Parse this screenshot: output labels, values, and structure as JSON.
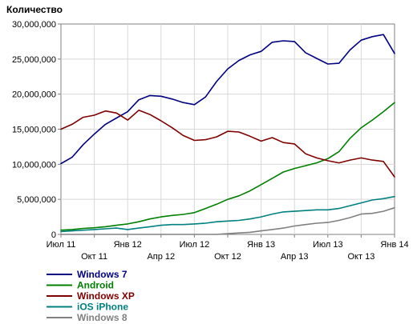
{
  "chart_data": {
    "type": "line",
    "ylabel": "Количество",
    "xlabel": "",
    "ylim": [
      0,
      30000000
    ],
    "y_ticks": [
      "0",
      "5,000,000",
      "10,000,000",
      "15,000,000",
      "20,000,000",
      "25,000,000",
      "30,000,000"
    ],
    "x_ticks_row1": [
      "Июл 11",
      "Янв 12",
      "Июл 12",
      "Янв 13",
      "Июл 13",
      "Янв 14"
    ],
    "x_ticks_row2": [
      "Окт 11",
      "Апр 12",
      "Окт 12",
      "Апр 13",
      "Окт 13"
    ],
    "x": [
      "2011-07",
      "2011-08",
      "2011-09",
      "2011-10",
      "2011-11",
      "2011-12",
      "2012-01",
      "2012-02",
      "2012-03",
      "2012-04",
      "2012-05",
      "2012-06",
      "2012-07",
      "2012-08",
      "2012-09",
      "2012-10",
      "2012-11",
      "2012-12",
      "2013-01",
      "2013-02",
      "2013-03",
      "2013-04",
      "2013-05",
      "2013-06",
      "2013-07",
      "2013-08",
      "2013-09",
      "2013-10",
      "2013-11",
      "2013-12",
      "2014-01"
    ],
    "grid": true,
    "legend_position": "bottom-left",
    "series": [
      {
        "name": "Windows 7",
        "color": "#000080",
        "values": [
          10100000,
          11000000,
          12800000,
          14300000,
          15700000,
          16600000,
          17500000,
          19200000,
          19800000,
          19700000,
          19300000,
          18800000,
          18500000,
          19600000,
          21800000,
          23600000,
          24800000,
          25600000,
          26100000,
          27400000,
          27600000,
          27500000,
          25900000,
          25100000,
          24300000,
          24400000,
          26300000,
          27700000,
          28200000,
          28500000,
          25800000
        ]
      },
      {
        "name": "Android",
        "color": "#008000",
        "values": [
          600000,
          700000,
          850000,
          950000,
          1100000,
          1300000,
          1500000,
          1800000,
          2200000,
          2500000,
          2700000,
          2850000,
          3100000,
          3700000,
          4300000,
          5000000,
          5500000,
          6200000,
          7100000,
          8000000,
          8900000,
          9400000,
          9800000,
          10200000,
          10800000,
          11800000,
          13700000,
          15200000,
          16300000,
          17500000,
          18800000
        ]
      },
      {
        "name": "Windows XP",
        "color": "#800000",
        "values": [
          15000000,
          15700000,
          16700000,
          17000000,
          17600000,
          17300000,
          16300000,
          17700000,
          17100000,
          16200000,
          15200000,
          14100000,
          13400000,
          13500000,
          13900000,
          14700000,
          14600000,
          14000000,
          13300000,
          13800000,
          13100000,
          12900000,
          11500000,
          10900000,
          10500000,
          10200000,
          10600000,
          10900000,
          10600000,
          10400000,
          8200000
        ]
      },
      {
        "name": "iOS iPhone",
        "color": "#008080",
        "values": [
          400000,
          500000,
          600000,
          700000,
          800000,
          900000,
          700000,
          900000,
          1100000,
          1300000,
          1400000,
          1400000,
          1500000,
          1600000,
          1800000,
          1900000,
          2000000,
          2200000,
          2500000,
          2900000,
          3200000,
          3300000,
          3400000,
          3500000,
          3500000,
          3700000,
          4100000,
          4500000,
          4900000,
          5100000,
          5400000
        ]
      },
      {
        "name": "Windows 8",
        "color": "#808080",
        "values": [
          0,
          0,
          0,
          0,
          0,
          0,
          0,
          0,
          0,
          0,
          0,
          0,
          0,
          0,
          0,
          100000,
          200000,
          300000,
          500000,
          700000,
          900000,
          1200000,
          1400000,
          1600000,
          1700000,
          2000000,
          2400000,
          2900000,
          3000000,
          3300000,
          3800000
        ]
      }
    ]
  }
}
